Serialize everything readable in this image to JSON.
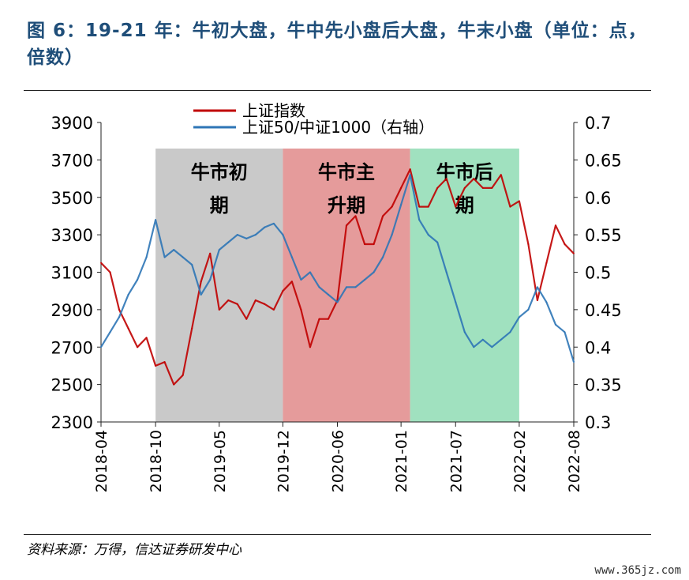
{
  "title": "图 6：19-21 年：牛初大盘，牛中先小盘后大盘，牛末小盘（单位：点，倍数）",
  "source": "资料来源：万得，信达证券研发中心",
  "watermark": "www.365jz.com",
  "chart_data": {
    "type": "line",
    "title": "图 6：19-21 年：牛初大盘，牛中先小盘后大盘，牛末小盘（单位：点，倍数）",
    "xlabel": "",
    "ylabel": "",
    "x_ticks": [
      "2018-04",
      "2018-10",
      "2019-05",
      "2019-12",
      "2020-06",
      "2021-01",
      "2021-07",
      "2022-02",
      "2022-08"
    ],
    "x_range": [
      "2018-04",
      "2022-08"
    ],
    "y_left": {
      "ticks": [
        "3900",
        "3700",
        "3500",
        "3300",
        "3100",
        "2900",
        "2700",
        "2500",
        "2300"
      ],
      "range": [
        2300,
        3900
      ]
    },
    "y_right": {
      "ticks": [
        "0.7",
        "0.65",
        "0.6",
        "0.55",
        "0.5",
        "0.45",
        "0.4",
        "0.35",
        "0.3"
      ],
      "range": [
        0.3,
        0.7
      ]
    },
    "legend": {
      "placement": "top",
      "entries": [
        "上证指数",
        "上证50/中证1000（右轴）"
      ]
    },
    "grid": false,
    "regions": [
      {
        "label_line1": "牛市初",
        "label_line2": "期",
        "start": "2018-10",
        "end": "2019-12",
        "color": "#bfbfbf"
      },
      {
        "label_line1": "牛市主",
        "label_line2": "升期",
        "start": "2019-12",
        "end": "2021-02",
        "color": "#e08a8a"
      },
      {
        "label_line1": "牛市后",
        "label_line2": "期",
        "start": "2021-02",
        "end": "2022-02",
        "color": "#8fdcb4"
      }
    ],
    "series": [
      {
        "name": "上证指数",
        "axis": "left",
        "color": "#c00000",
        "points": [
          [
            "2018-04",
            3150
          ],
          [
            "2018-05",
            3100
          ],
          [
            "2018-06",
            2900
          ],
          [
            "2018-07",
            2800
          ],
          [
            "2018-08",
            2700
          ],
          [
            "2018-09",
            2750
          ],
          [
            "2018-10",
            2600
          ],
          [
            "2018-11",
            2620
          ],
          [
            "2018-12",
            2500
          ],
          [
            "2019-01",
            2550
          ],
          [
            "2019-02",
            2800
          ],
          [
            "2019-03",
            3050
          ],
          [
            "2019-04",
            3200
          ],
          [
            "2019-05",
            2900
          ],
          [
            "2019-06",
            2950
          ],
          [
            "2019-07",
            2930
          ],
          [
            "2019-08",
            2850
          ],
          [
            "2019-09",
            2950
          ],
          [
            "2019-10",
            2930
          ],
          [
            "2019-11",
            2900
          ],
          [
            "2019-12",
            3000
          ],
          [
            "2020-01",
            3050
          ],
          [
            "2020-02",
            2900
          ],
          [
            "2020-03",
            2700
          ],
          [
            "2020-04",
            2850
          ],
          [
            "2020-05",
            2850
          ],
          [
            "2020-06",
            2950
          ],
          [
            "2020-07",
            3350
          ],
          [
            "2020-08",
            3400
          ],
          [
            "2020-09",
            3250
          ],
          [
            "2020-10",
            3250
          ],
          [
            "2020-11",
            3400
          ],
          [
            "2020-12",
            3450
          ],
          [
            "2021-01",
            3550
          ],
          [
            "2021-02",
            3650
          ],
          [
            "2021-03",
            3450
          ],
          [
            "2021-04",
            3450
          ],
          [
            "2021-05",
            3550
          ],
          [
            "2021-06",
            3600
          ],
          [
            "2021-07",
            3450
          ],
          [
            "2021-08",
            3550
          ],
          [
            "2021-09",
            3600
          ],
          [
            "2021-10",
            3550
          ],
          [
            "2021-11",
            3550
          ],
          [
            "2021-12",
            3620
          ],
          [
            "2022-01",
            3450
          ],
          [
            "2022-02",
            3480
          ],
          [
            "2022-03",
            3250
          ],
          [
            "2022-04",
            2950
          ],
          [
            "2022-05",
            3150
          ],
          [
            "2022-06",
            3350
          ],
          [
            "2022-07",
            3250
          ],
          [
            "2022-08",
            3200
          ]
        ]
      },
      {
        "name": "上证50/中证1000（右轴）",
        "axis": "right",
        "color": "#2e75b6",
        "points": [
          [
            "2018-04",
            0.4
          ],
          [
            "2018-05",
            0.42
          ],
          [
            "2018-06",
            0.44
          ],
          [
            "2018-07",
            0.47
          ],
          [
            "2018-08",
            0.49
          ],
          [
            "2018-09",
            0.52
          ],
          [
            "2018-10",
            0.57
          ],
          [
            "2018-11",
            0.52
          ],
          [
            "2018-12",
            0.53
          ],
          [
            "2019-01",
            0.52
          ],
          [
            "2019-02",
            0.51
          ],
          [
            "2019-03",
            0.47
          ],
          [
            "2019-04",
            0.49
          ],
          [
            "2019-05",
            0.53
          ],
          [
            "2019-06",
            0.54
          ],
          [
            "2019-07",
            0.55
          ],
          [
            "2019-08",
            0.545
          ],
          [
            "2019-09",
            0.55
          ],
          [
            "2019-10",
            0.56
          ],
          [
            "2019-11",
            0.565
          ],
          [
            "2019-12",
            0.55
          ],
          [
            "2020-01",
            0.52
          ],
          [
            "2020-02",
            0.49
          ],
          [
            "2020-03",
            0.5
          ],
          [
            "2020-04",
            0.48
          ],
          [
            "2020-05",
            0.47
          ],
          [
            "2020-06",
            0.46
          ],
          [
            "2020-07",
            0.48
          ],
          [
            "2020-08",
            0.48
          ],
          [
            "2020-09",
            0.49
          ],
          [
            "2020-10",
            0.5
          ],
          [
            "2020-11",
            0.52
          ],
          [
            "2020-12",
            0.55
          ],
          [
            "2021-01",
            0.59
          ],
          [
            "2021-02",
            0.63
          ],
          [
            "2021-03",
            0.57
          ],
          [
            "2021-04",
            0.55
          ],
          [
            "2021-05",
            0.54
          ],
          [
            "2021-06",
            0.5
          ],
          [
            "2021-07",
            0.46
          ],
          [
            "2021-08",
            0.42
          ],
          [
            "2021-09",
            0.4
          ],
          [
            "2021-10",
            0.41
          ],
          [
            "2021-11",
            0.4
          ],
          [
            "2021-12",
            0.41
          ],
          [
            "2022-01",
            0.42
          ],
          [
            "2022-02",
            0.44
          ],
          [
            "2022-03",
            0.45
          ],
          [
            "2022-04",
            0.48
          ],
          [
            "2022-05",
            0.46
          ],
          [
            "2022-06",
            0.43
          ],
          [
            "2022-07",
            0.42
          ],
          [
            "2022-08",
            0.38
          ]
        ]
      }
    ]
  }
}
